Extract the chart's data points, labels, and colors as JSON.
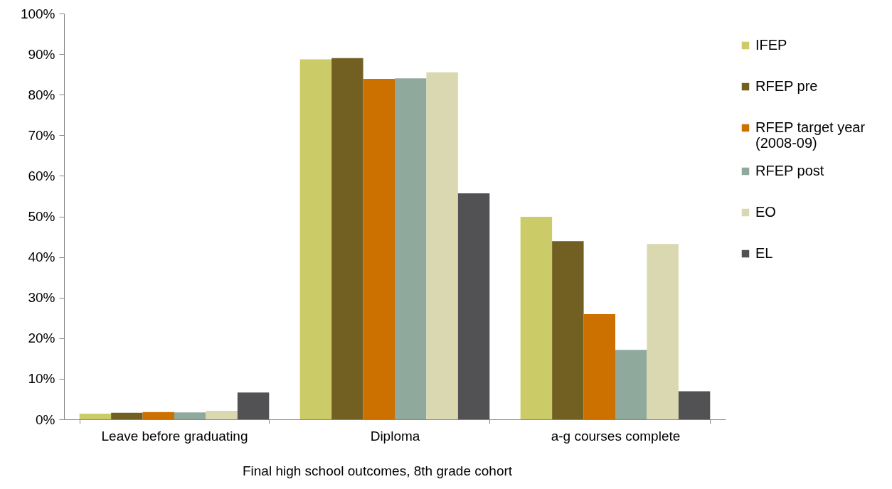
{
  "chart_data": {
    "type": "bar",
    "categories": [
      "Leave before graduating",
      "Diploma",
      "a-g courses complete"
    ],
    "series": [
      {
        "name": "IFEP",
        "color": "#cbcb67",
        "values": [
          1.4,
          88.7,
          49.9
        ]
      },
      {
        "name": "RFEP pre",
        "color": "#725f22",
        "values": [
          1.6,
          89.0,
          43.9
        ]
      },
      {
        "name": "RFEP target year (2008-09)",
        "color": "#cc7000",
        "values": [
          1.8,
          83.9,
          25.9
        ]
      },
      {
        "name": "RFEP post",
        "color": "#8fa99c",
        "values": [
          1.7,
          84.0,
          17.1
        ]
      },
      {
        "name": "EO",
        "color": "#dad8b0",
        "values": [
          2.1,
          85.5,
          43.2
        ]
      },
      {
        "name": "EL",
        "color": "#525254",
        "values": [
          6.6,
          55.7,
          6.9
        ]
      }
    ],
    "ylim": [
      0,
      100
    ],
    "yticks": [
      {
        "value": 0,
        "label": "0%"
      },
      {
        "value": 10,
        "label": "10%"
      },
      {
        "value": 20,
        "label": "20%"
      },
      {
        "value": 30,
        "label": "30%"
      },
      {
        "value": 40,
        "label": "40%"
      },
      {
        "value": 50,
        "label": "50%"
      },
      {
        "value": 60,
        "label": "60%"
      },
      {
        "value": 70,
        "label": "70%"
      },
      {
        "value": 80,
        "label": "80%"
      },
      {
        "value": 90,
        "label": "90%"
      },
      {
        "value": 100,
        "label": "100%"
      }
    ],
    "xlabel": "Final high school outcomes, 8th grade cohort",
    "legend": "right"
  }
}
